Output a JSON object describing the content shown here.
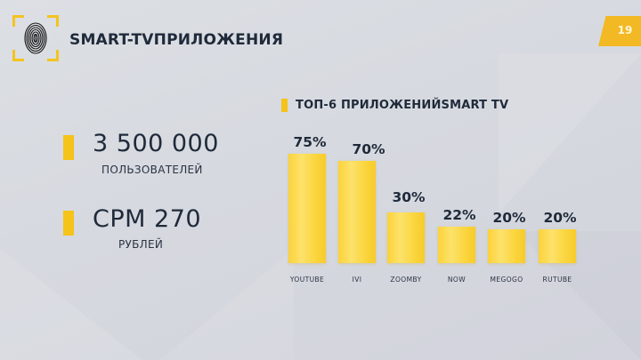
{
  "header": {
    "title": "SMART-TVПРИЛОЖЕНИЯ",
    "logo_icon": "fingerprint-icon",
    "page_number": "19"
  },
  "stats": [
    {
      "value": "3 500 000",
      "label": "ПОЛЬЗОВАТЕЛЕЙ"
    },
    {
      "value": "CPM 270",
      "label": "РУБЛЕЙ"
    }
  ],
  "chart_header": "ТОП-6 ПРИЛОЖЕНИЙSMART TV",
  "colors": {
    "accent": "#f5c31a",
    "bar": "#fbd640",
    "text": "#1f2a3a",
    "background": "#d8dbe0",
    "page_badge": "#f3b925"
  },
  "chart_data": {
    "type": "bar",
    "title": "ТОП-6 ПРИЛОЖЕНИЙSMART TV",
    "categories": [
      "YOUTUBE",
      "IVI",
      "ZOOMBY",
      "NOW",
      "MEGOGO",
      "RUTUBE"
    ],
    "values": [
      75,
      70,
      30,
      22,
      20,
      20
    ],
    "value_labels": [
      "75%",
      "70%",
      "30%",
      "22%",
      "20%",
      "20%"
    ],
    "xlabel": "",
    "ylabel": "",
    "unit": "%",
    "grid": false,
    "legend": false,
    "axes_visible": false
  }
}
